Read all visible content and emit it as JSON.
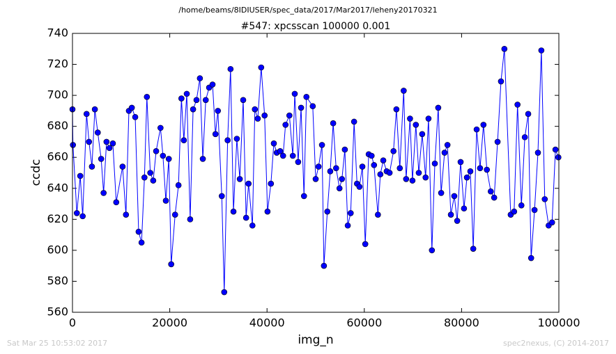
{
  "chart_data": {
    "type": "line",
    "suptitle": "/home/beams/8IDIUSER/spec_data/2017/Mar2017/leheny20170321",
    "title": "#547: xpcsscan 100000 0.001",
    "xlabel": "img_n",
    "ylabel": "ccdc",
    "timestamp": "Sat Mar 25 10:53:02 2017",
    "credit": "spec2nexus, (C) 2014-2017",
    "color": "#0000ff",
    "marker": "circle",
    "xlim": [
      0,
      100000
    ],
    "xticks": [
      0,
      20000,
      40000,
      60000,
      80000,
      100000
    ],
    "ylim": [
      560,
      740
    ],
    "yticks": [
      560,
      580,
      600,
      620,
      640,
      660,
      680,
      700,
      720,
      740
    ],
    "x": [
      0,
      100,
      900,
      1600,
      2100,
      2900,
      3400,
      4000,
      4600,
      5200,
      5900,
      6400,
      7000,
      7600,
      8300,
      9000,
      10300,
      11000,
      11600,
      12200,
      12900,
      13600,
      14200,
      14800,
      15300,
      16000,
      16600,
      17200,
      18100,
      18600,
      19200,
      19800,
      20300,
      21100,
      21800,
      22400,
      22900,
      23500,
      24200,
      24800,
      25500,
      26200,
      26800,
      27400,
      28100,
      28800,
      29400,
      29900,
      30700,
      31200,
      31900,
      32500,
      33100,
      33800,
      34400,
      35100,
      35700,
      36200,
      37000,
      37500,
      38100,
      38800,
      39500,
      40100,
      40800,
      41400,
      42000,
      42700,
      43300,
      43800,
      44600,
      45300,
      45700,
      46400,
      47000,
      47600,
      48100,
      49400,
      50000,
      50600,
      51300,
      51700,
      52400,
      53000,
      53600,
      54200,
      54900,
      55400,
      56000,
      56600,
      57200,
      57900,
      58500,
      59000,
      59600,
      60200,
      60900,
      61500,
      62000,
      62800,
      63300,
      63900,
      64600,
      65200,
      66000,
      66600,
      67300,
      68100,
      68600,
      69400,
      69900,
      70600,
      71200,
      71900,
      72600,
      73200,
      73900,
      74500,
      75200,
      75800,
      76500,
      77100,
      77800,
      78500,
      79100,
      79800,
      80500,
      81100,
      81800,
      82400,
      83100,
      83800,
      84500,
      85200,
      86000,
      86700,
      87400,
      88100,
      88800,
      90100,
      90800,
      91500,
      92300,
      93000,
      93700,
      94300,
      95000,
      95700,
      96400,
      97100,
      97900,
      98600,
      99300,
      99900
    ],
    "values": [
      691,
      668,
      624,
      648,
      622,
      688,
      670,
      654,
      691,
      676,
      659,
      637,
      670,
      666,
      669,
      631,
      654,
      623,
      690,
      692,
      686,
      612,
      605,
      647,
      699,
      650,
      645,
      664,
      679,
      661,
      632,
      659,
      591,
      623,
      642,
      698,
      671,
      701,
      620,
      691,
      697,
      711,
      659,
      697,
      705,
      707,
      675,
      690,
      635,
      573,
      671,
      717,
      625,
      672,
      646,
      697,
      621,
      643,
      616,
      691,
      685,
      718,
      687,
      625,
      643,
      669,
      663,
      664,
      661,
      681,
      687,
      661,
      701,
      657,
      692,
      635,
      699,
      693,
      646,
      654,
      668,
      590,
      625,
      651,
      682,
      653,
      640,
      646,
      665,
      616,
      624,
      683,
      643,
      641,
      654,
      604,
      662,
      661,
      655,
      623,
      649,
      658,
      651,
      650,
      664,
      691,
      653,
      703,
      646,
      685,
      645,
      681,
      650,
      675,
      647,
      685,
      600,
      656,
      692,
      637,
      663,
      668,
      623,
      635,
      619,
      657,
      627,
      647,
      651,
      601,
      678,
      653,
      681,
      652,
      638,
      634,
      670,
      709,
      730,
      623,
      625,
      694,
      629,
      673,
      688,
      595,
      626,
      663,
      729,
      633,
      616,
      618,
      665,
      660
    ]
  }
}
